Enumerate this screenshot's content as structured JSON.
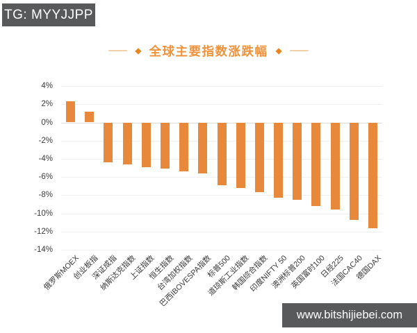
{
  "header_badge": {
    "text": "TG: MYYJJPP"
  },
  "footer_badge": {
    "text": "www.bitshijiebei.com"
  },
  "title": {
    "text": "全球主要指数涨跌幅",
    "diamond": "◆"
  },
  "colors": {
    "bar": "#E8883A",
    "title": "#F0923B",
    "diamond": "#E8851F",
    "badge_bg": "#58595B",
    "badge_text": "#FFFFFF"
  },
  "chart_data": {
    "type": "bar",
    "title": "全球主要指数涨跌幅",
    "xlabel": "",
    "ylabel": "",
    "unit": "%",
    "grid": true,
    "legend": false,
    "ylim": [
      -14,
      4
    ],
    "ytick_labels": [
      "4%",
      "2%",
      "0%",
      "-2%",
      "-4%",
      "-6%",
      "-8%",
      "-10%",
      "-12%",
      "-14%"
    ],
    "categories": [
      "俄罗斯MOEX",
      "创业板指",
      "深证成指",
      "纳斯达克指数",
      "上证指数",
      "恒生指数",
      "台湾加权指数",
      "巴西IBOVESPA指数",
      "标普500",
      "道琼斯工业指数",
      "韩国综合指数",
      "印度NIFTY 50",
      "澳洲标普200",
      "英国富时100",
      "日经225",
      "法国CAC40",
      "德国DAX"
    ],
    "values": [
      2.3,
      1.2,
      -4.4,
      -4.6,
      -4.9,
      -5.1,
      -5.4,
      -5.6,
      -6.9,
      -7.2,
      -7.7,
      -8.3,
      -8.5,
      -9.2,
      -9.6,
      -10.7,
      -11.6
    ]
  }
}
